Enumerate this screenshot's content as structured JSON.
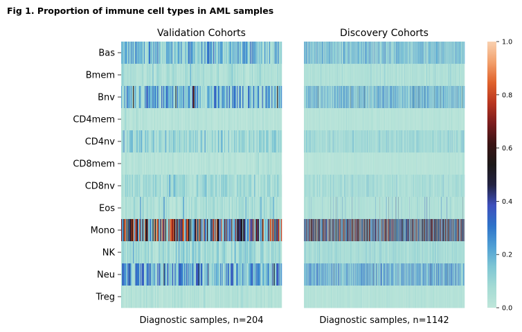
{
  "figure": {
    "title": "Fig 1. Proportion of immune cell types in AML samples"
  },
  "colors": {
    "colormap": [
      "#bfe6da",
      "#a4dbd4",
      "#7ec6d4",
      "#4f9fd4",
      "#2e73c9",
      "#3d4fbc",
      "#222242",
      "#1c1818",
      "#3a1414",
      "#7a1c1e",
      "#b8351f",
      "#e0622c",
      "#f2a06c",
      "#f9d1b0"
    ]
  },
  "chart_data": [
    {
      "type": "heatmap",
      "title": "Validation Cohorts",
      "xlabel": "Diagnostic samples, n=204",
      "n_samples": 204,
      "rows": [
        "Bas",
        "Bmem",
        "Bnv",
        "CD4mem",
        "CD4nv",
        "CD8mem",
        "CD8nv",
        "Eos",
        "Mono",
        "NK",
        "Neu",
        "Treg"
      ],
      "row_mean_proportion": [
        0.18,
        0.06,
        0.2,
        0.03,
        0.1,
        0.03,
        0.08,
        0.06,
        0.5,
        0.09,
        0.22,
        0.04
      ],
      "row_max_proportion": [
        0.45,
        0.2,
        0.7,
        0.1,
        0.3,
        0.1,
        0.25,
        0.3,
        0.85,
        0.25,
        0.55,
        0.1
      ],
      "value_range": [
        0,
        1
      ]
    },
    {
      "type": "heatmap",
      "title": "Discovery Cohorts",
      "xlabel": "Diagnostic samples, n=1142",
      "n_samples": 1142,
      "rows": [
        "Bas",
        "Bmem",
        "Bnv",
        "CD4mem",
        "CD4nv",
        "CD8mem",
        "CD8nv",
        "Eos",
        "Mono",
        "NK",
        "Neu",
        "Treg"
      ],
      "row_mean_proportion": [
        0.16,
        0.05,
        0.18,
        0.03,
        0.09,
        0.03,
        0.07,
        0.05,
        0.48,
        0.08,
        0.2,
        0.04
      ],
      "row_max_proportion": [
        0.4,
        0.2,
        0.55,
        0.1,
        0.3,
        0.1,
        0.25,
        0.45,
        0.85,
        0.25,
        0.45,
        0.1
      ],
      "value_range": [
        0,
        1
      ]
    }
  ],
  "colorbar": {
    "ticks": [
      "0.0",
      "0.2",
      "0.4",
      "0.6",
      "0.8",
      "1.0"
    ],
    "tick_values": [
      0,
      0.2,
      0.4,
      0.6,
      0.8,
      1.0
    ]
  }
}
